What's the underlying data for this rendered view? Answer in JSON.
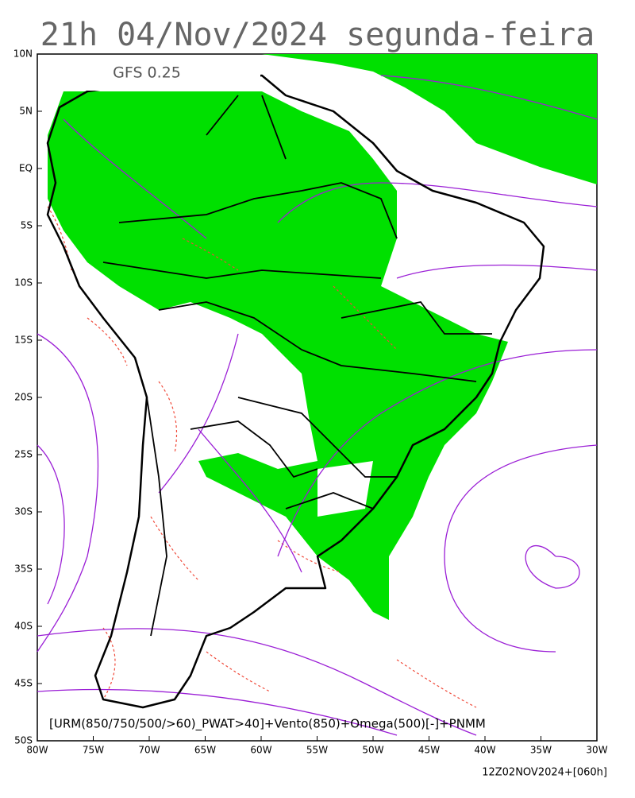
{
  "title": "21h 04/Nov/2024 segunda-feira",
  "model_label": "GFS 0.25",
  "lat_labels": [
    "10N",
    "5N",
    "EQ",
    "5S",
    "10S",
    "15S",
    "20S",
    "25S",
    "30S",
    "35S",
    "40S",
    "45S",
    "50S"
  ],
  "lon_labels": [
    "80W",
    "75W",
    "70W",
    "65W",
    "60W",
    "55W",
    "50W",
    "45W",
    "40W",
    "35W",
    "30W"
  ],
  "caption": "[URM(850/750/500/>60)_PWAT>40]+Vento(850)+Omega(500)[-]+PNMM",
  "footer": "12Z02NOV2024+[060h]"
}
